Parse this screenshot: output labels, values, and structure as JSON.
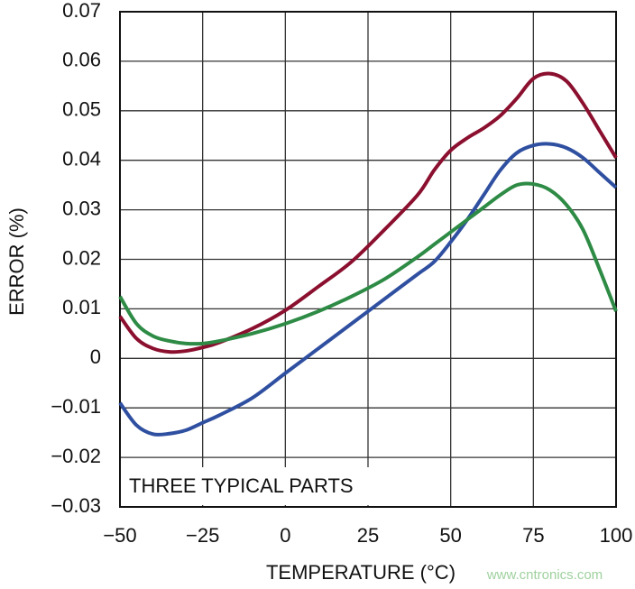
{
  "chart_data": {
    "type": "line",
    "x_label": "TEMPERATURE (°C)",
    "y_label": "ERROR (%)",
    "annotation": "THREE TYPICAL PARTS",
    "watermark": "www.cntronics.com",
    "x": [
      -50,
      -45,
      -40,
      -35,
      -30,
      -25,
      -20,
      -10,
      0,
      10,
      20,
      30,
      40,
      45,
      50,
      55,
      60,
      65,
      70,
      75,
      80,
      85,
      90,
      95,
      100
    ],
    "series": [
      {
        "color": "#8b0f2e",
        "values": [
          0.0085,
          0.004,
          0.002,
          0.0013,
          0.0015,
          0.0022,
          0.0032,
          0.006,
          0.0097,
          0.0145,
          0.0195,
          0.026,
          0.033,
          0.038,
          0.042,
          0.0445,
          0.0465,
          0.049,
          0.0525,
          0.0565,
          0.0575,
          0.056,
          0.0515,
          0.046,
          0.0405
        ]
      },
      {
        "color": "#2f4fa0",
        "values": [
          -0.009,
          -0.0135,
          -0.0153,
          -0.0152,
          -0.0145,
          -0.013,
          -0.0115,
          -0.008,
          -0.003,
          0.002,
          0.007,
          0.012,
          0.017,
          0.0195,
          0.0235,
          0.028,
          0.033,
          0.038,
          0.0415,
          0.043,
          0.0433,
          0.0425,
          0.0405,
          0.0375,
          0.0345
        ]
      },
      {
        "color": "#2e8b45",
        "values": [
          0.0125,
          0.007,
          0.0045,
          0.0035,
          0.003,
          0.003,
          0.0035,
          0.005,
          0.007,
          0.0095,
          0.0125,
          0.016,
          0.0205,
          0.023,
          0.0255,
          0.028,
          0.0305,
          0.033,
          0.035,
          0.0352,
          0.034,
          0.031,
          0.026,
          0.018,
          0.0095
        ]
      }
    ],
    "xlim": [
      -50,
      100
    ],
    "xticks": [
      {
        "value": -50,
        "label": "−50"
      },
      {
        "value": -25,
        "label": "−25"
      },
      0,
      25,
      50,
      75,
      100
    ],
    "ylim": [
      -0.03,
      0.07
    ],
    "yticks": [
      {
        "value": -0.03,
        "label": "−0.03"
      },
      {
        "value": -0.02,
        "label": "−0.02"
      },
      {
        "value": -0.01,
        "label": "−0.01"
      },
      0,
      0.01,
      0.02,
      0.03,
      0.04,
      0.05,
      0.06,
      0.07
    ],
    "grid": true
  }
}
